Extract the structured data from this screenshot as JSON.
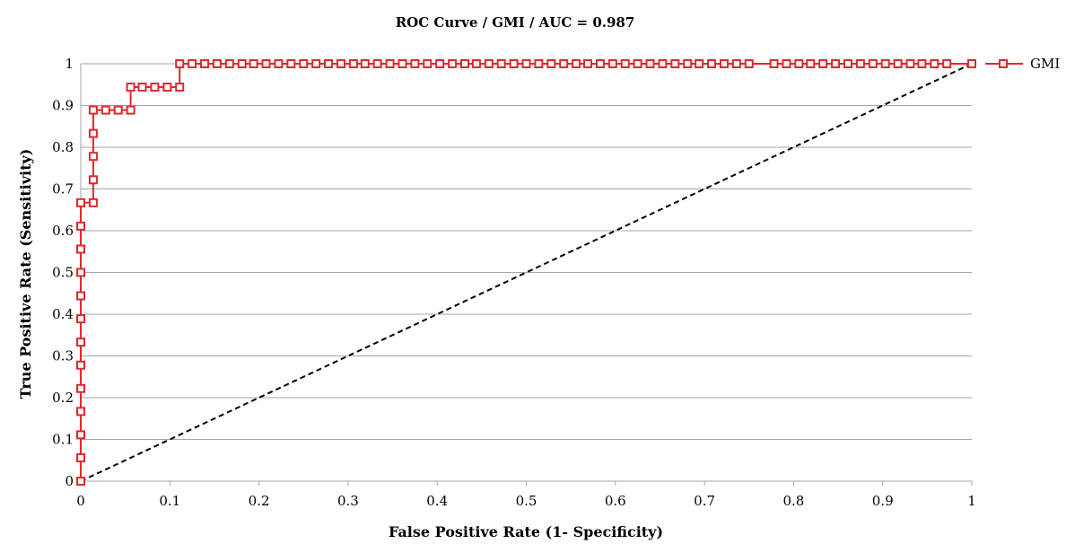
{
  "chart_data": {
    "type": "line",
    "title": "ROC Curve / GMI / AUC = 0.987",
    "xlabel": "False Positive Rate (1- Specificity)",
    "ylabel": "True Positive Rate (Sensitivity)",
    "xlim": [
      0,
      1
    ],
    "ylim": [
      0,
      1
    ],
    "x_ticks": [
      "0",
      "0.1",
      "0.2",
      "0.3",
      "0.4",
      "0.5",
      "0.6",
      "0.7",
      "0.8",
      "0.9",
      "1"
    ],
    "y_ticks": [
      "0",
      "0.1",
      "0.2",
      "0.3",
      "0.4",
      "0.5",
      "0.6",
      "0.7",
      "0.8",
      "0.9",
      "1"
    ],
    "grid": "horizontal",
    "legend_position": "right",
    "series": [
      {
        "name": "GMI",
        "color": "#e0282e",
        "marker": "square-open",
        "x": [
          0,
          0,
          0,
          0,
          0,
          0,
          0,
          0,
          0,
          0,
          0,
          0,
          0,
          0.014,
          0.014,
          0.014,
          0.014,
          0.014,
          0.028,
          0.042,
          0.056,
          0.056,
          0.069,
          0.083,
          0.097,
          0.111,
          0.111,
          0.125,
          0.139,
          0.153,
          0.167,
          0.181,
          0.194,
          0.208,
          0.222,
          0.236,
          0.25,
          0.264,
          0.278,
          0.292,
          0.306,
          0.319,
          0.333,
          0.347,
          0.361,
          0.375,
          0.389,
          0.403,
          0.417,
          0.431,
          0.444,
          0.458,
          0.472,
          0.486,
          0.5,
          0.514,
          0.528,
          0.542,
          0.556,
          0.569,
          0.583,
          0.597,
          0.611,
          0.625,
          0.639,
          0.653,
          0.667,
          0.681,
          0.694,
          0.708,
          0.722,
          0.736,
          0.75,
          0.778,
          0.792,
          0.806,
          0.819,
          0.833,
          0.847,
          0.861,
          0.875,
          0.889,
          0.903,
          0.917,
          0.931,
          0.944,
          0.958,
          0.972,
          1
        ],
        "y": [
          0,
          0.056,
          0.111,
          0.167,
          0.222,
          0.278,
          0.333,
          0.389,
          0.444,
          0.5,
          0.556,
          0.611,
          0.667,
          0.667,
          0.722,
          0.778,
          0.833,
          0.889,
          0.889,
          0.889,
          0.889,
          0.944,
          0.944,
          0.944,
          0.944,
          0.944,
          1,
          1,
          1,
          1,
          1,
          1,
          1,
          1,
          1,
          1,
          1,
          1,
          1,
          1,
          1,
          1,
          1,
          1,
          1,
          1,
          1,
          1,
          1,
          1,
          1,
          1,
          1,
          1,
          1,
          1,
          1,
          1,
          1,
          1,
          1,
          1,
          1,
          1,
          1,
          1,
          1,
          1,
          1,
          1,
          1,
          1,
          1,
          1,
          1,
          1,
          1,
          1,
          1,
          1,
          1,
          1,
          1,
          1,
          1,
          1,
          1,
          1,
          1
        ]
      },
      {
        "name": "",
        "color": "#000000",
        "style": "dashed",
        "x": [
          0,
          1
        ],
        "y": [
          0,
          1
        ]
      }
    ]
  }
}
